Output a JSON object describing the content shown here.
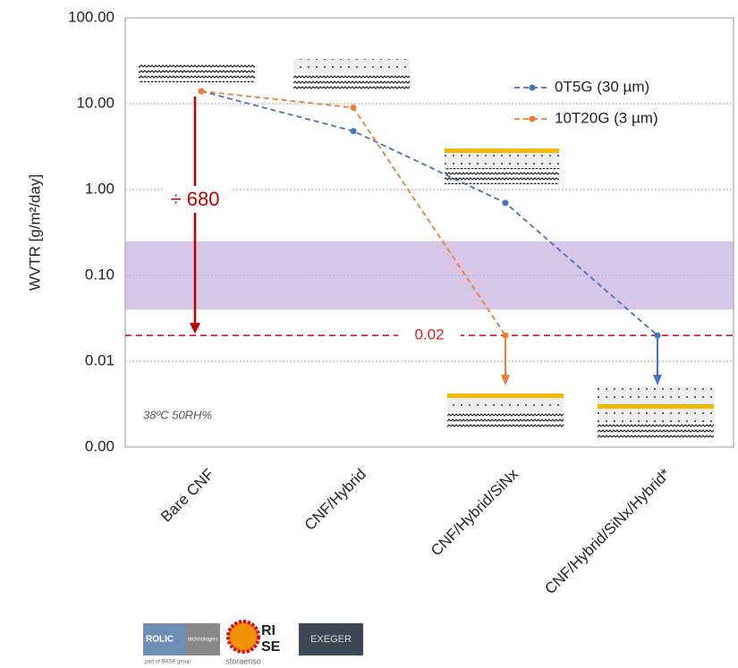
{
  "chart_data": {
    "type": "line",
    "y_label": "WVTR [g/m²/day]",
    "categories": [
      "Bare CNF",
      "CNF/Hybrid",
      "CNF/Hybrid/SiNx",
      "CNF/Hybrid/SiNx/Hybrid*"
    ],
    "series": [
      {
        "name": "0T5G (30 µm)",
        "color": "#4472c4",
        "values": [
          14,
          4.8,
          0.7,
          0.02
        ]
      },
      {
        "name": "10T20G (3 µm)",
        "color": "#ed7d31",
        "values": [
          14,
          9,
          0.02,
          null
        ]
      }
    ],
    "log_scale": true,
    "ylim": [
      0.001,
      100
    ],
    "yticks": [
      {
        "value": 0.001,
        "label": "0.00"
      },
      {
        "value": 0.01,
        "label": "0.01"
      },
      {
        "value": 0.1,
        "label": "0.10"
      },
      {
        "value": 1,
        "label": "1.00"
      },
      {
        "value": 10,
        "label": "10.00"
      },
      {
        "value": 100,
        "label": "100.00"
      }
    ],
    "grid": true,
    "legend": "upper right",
    "target_band": [
      0.04,
      0.25
    ],
    "threshold": {
      "value": 0.02,
      "label": "0.02",
      "color": "#e02020"
    },
    "reduction_label": "÷ 680",
    "condition_label": "38ºC 50RH%",
    "logos": [
      "ROLIC",
      "technologies",
      "part of BASF group",
      "storaenso",
      "RI",
      "SE",
      "EXEGER"
    ]
  }
}
